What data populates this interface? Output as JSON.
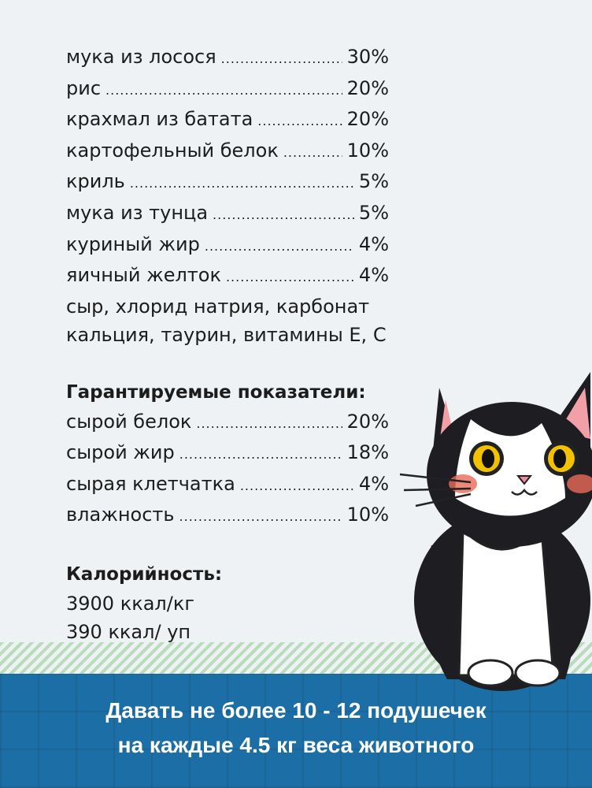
{
  "ingredients": [
    {
      "label": "мука из лосося",
      "value": "30%"
    },
    {
      "label": "рис",
      "value": "20%"
    },
    {
      "label": "крахмал из батата",
      "value": "20%"
    },
    {
      "label": "картофельный белок",
      "value": "10%"
    },
    {
      "label": "криль",
      "value": "5%"
    },
    {
      "label": "мука из тунца",
      "value": "5%"
    },
    {
      "label": "куриный жир",
      "value": "4%"
    },
    {
      "label": "яичный желток",
      "value": "4%"
    }
  ],
  "ingredients_extra": [
    "сыр, хлорид натрия, карбонат",
    "кальция, таурин, витамины Е, С"
  ],
  "guaranteed": {
    "title": "Гарантируемые показатели:",
    "items": [
      {
        "label": "сырой белок",
        "value": "20%"
      },
      {
        "label": "сырой жир",
        "value": "18%"
      },
      {
        "label": "сырая клетчатка",
        "value": "4%"
      },
      {
        "label": "влажность",
        "value": "10%"
      }
    ]
  },
  "calories": {
    "title": "Калорийность:",
    "lines": [
      "3900 ккал/кг",
      "390 ккал/ уп"
    ]
  },
  "banner": {
    "line1": "Давать не более 10 - 12 подушечек",
    "line2": "на каждые 4.5 кг веса животного"
  },
  "colors": {
    "band": "#1c6fa6",
    "strip": "#b3d9b3",
    "background": "#eef2f5"
  }
}
